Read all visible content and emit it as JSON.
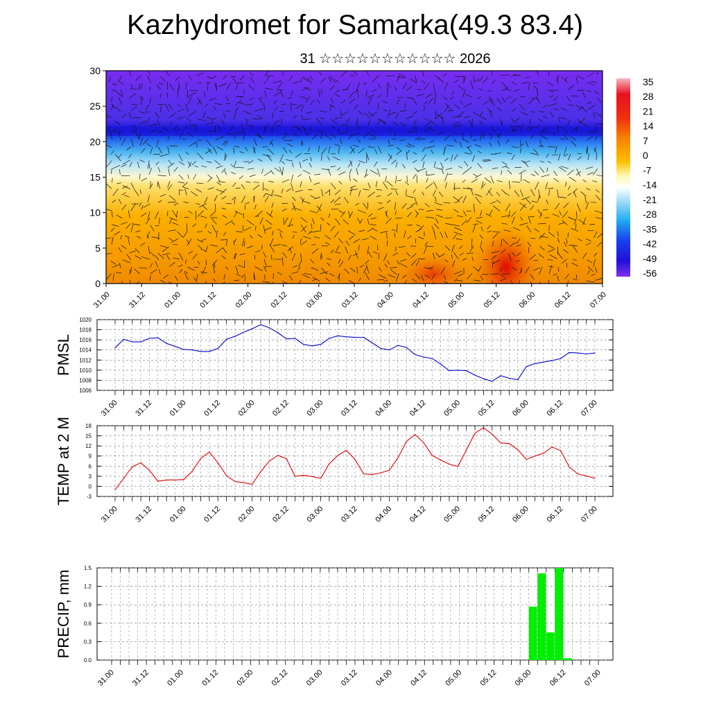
{
  "header": {
    "title": "Kazhydromet for Samarka(49.3 83.4)",
    "subtitle": "31 ☆☆☆☆☆☆☆☆☆☆☆ 2026"
  },
  "x_labels": [
    "31.00",
    "31.12",
    "01.00",
    "01.12",
    "02.00",
    "02.12",
    "03.00",
    "03.12",
    "04.00",
    "04.12",
    "05.00",
    "05.12",
    "06.00",
    "06.12",
    "07.00"
  ],
  "chart_data": [
    {
      "type": "heatmap",
      "title": "",
      "x_tick_labels": [
        "31.00",
        "31.12",
        "01.00",
        "01.12",
        "02.00",
        "02.12",
        "03.00",
        "03.12",
        "04.00",
        "04.12",
        "05.00",
        "05.12",
        "06.00",
        "06.12",
        "07.00"
      ],
      "ylim": [
        0,
        30
      ],
      "y_ticks": [
        0,
        5,
        10,
        15,
        20,
        25,
        30
      ],
      "colorbar_labels": [
        "35",
        "28",
        "21",
        "14",
        "7",
        "0",
        "-7",
        "-14",
        "-21",
        "-28",
        "-35",
        "-42",
        "-49",
        "-56"
      ],
      "colors": {
        "warm": "#f5a000",
        "hot": "#e81000",
        "neutral": "#fff3a0",
        "cool": "#3cb0f0",
        "cold": "#1a20f0",
        "top": "#7a2af0"
      }
    },
    {
      "type": "line",
      "ylabel": "PMSL",
      "ylim": [
        1006,
        1020
      ],
      "y_ticks": [
        1006,
        1008,
        1010,
        1012,
        1014,
        1016,
        1018,
        1020
      ],
      "color": "#0000cc",
      "values": [
        1014.4,
        1016.1,
        1015.6,
        1015.6,
        1016.3,
        1016.4,
        1015.3,
        1014.7,
        1014.1,
        1014.0,
        1013.7,
        1013.7,
        1014.3,
        1016.1,
        1016.7,
        1017.5,
        1018.2,
        1019.0,
        1018.4,
        1017.4,
        1016.2,
        1016.3,
        1015.1,
        1014.8,
        1015.1,
        1016.3,
        1016.8,
        1016.6,
        1016.5,
        1016.5,
        1015.4,
        1014.3,
        1014.0,
        1014.9,
        1014.5,
        1013.1,
        1012.6,
        1012.3,
        1011.2,
        1009.9,
        1010.0,
        1009.9,
        1009.0,
        1008.3,
        1007.8,
        1008.9,
        1008.4,
        1008.1,
        1010.7,
        1011.3,
        1011.6,
        1011.9,
        1012.3,
        1013.5,
        1013.4,
        1013.2,
        1013.4
      ]
    },
    {
      "type": "line",
      "ylabel": "TEMP at 2 M",
      "ylim": [
        -3,
        18
      ],
      "y_ticks": [
        -3,
        0,
        3,
        6,
        9,
        12,
        15,
        18
      ],
      "color": "#dd0000",
      "values": [
        -1.0,
        2.4,
        5.8,
        7.0,
        4.8,
        1.5,
        1.9,
        1.9,
        2.0,
        4.5,
        8.3,
        10.2,
        7.0,
        3.2,
        1.4,
        1.1,
        0.6,
        4.4,
        7.5,
        9.2,
        8.2,
        3.0,
        3.3,
        2.9,
        2.4,
        6.7,
        9.2,
        10.7,
        8.0,
        3.7,
        3.5,
        4.0,
        4.8,
        8.4,
        13.3,
        15.4,
        13.0,
        9.2,
        7.8,
        6.6,
        5.9,
        10.8,
        15.8,
        17.4,
        15.5,
        12.9,
        12.7,
        10.9,
        8.0,
        9.0,
        9.8,
        11.7,
        10.6,
        5.8,
        3.7,
        3.1,
        2.4
      ]
    },
    {
      "type": "bar",
      "ylabel": "PRECIP, mm",
      "ylim": [
        0,
        1.5
      ],
      "y_ticks": [
        "0.0",
        "0.3",
        "0.6",
        "0.9",
        "1.2",
        "1.5"
      ],
      "color": "#00ee00",
      "bars": [
        {
          "x_index": 48,
          "value": 0.87
        },
        {
          "x_index": 49,
          "value": 1.41
        },
        {
          "x_index": 50,
          "value": 0.45
        },
        {
          "x_index": 51,
          "value": 1.5
        },
        {
          "x_index": 52,
          "value": 0.03
        }
      ]
    }
  ]
}
